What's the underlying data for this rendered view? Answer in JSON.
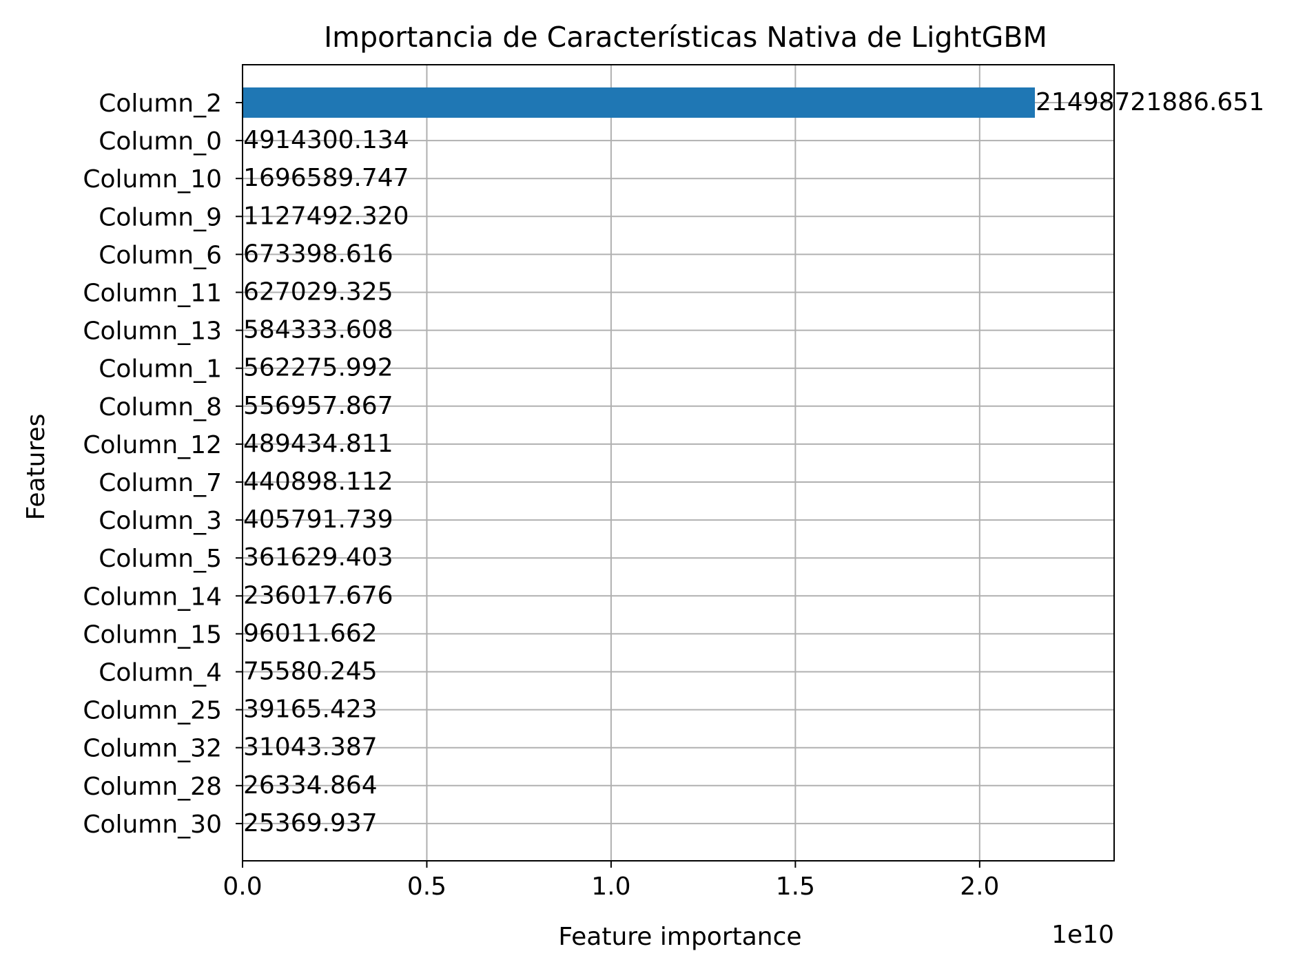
{
  "chart_data": {
    "type": "bar",
    "orientation": "horizontal",
    "title": "Importancia de Características Nativa de LightGBM",
    "xlabel": "Feature importance",
    "ylabel": "Features",
    "x_offset_label": "1e10",
    "xlim": [
      0,
      23648594075.3
    ],
    "x_ticks": [
      0,
      5000000000,
      10000000000,
      15000000000,
      20000000000
    ],
    "x_tick_labels": [
      "0.0",
      "0.5",
      "1.0",
      "1.5",
      "2.0"
    ],
    "grid": true,
    "bar_color": "#1f77b4",
    "categories": [
      "Column_2",
      "Column_0",
      "Column_10",
      "Column_9",
      "Column_6",
      "Column_11",
      "Column_13",
      "Column_1",
      "Column_8",
      "Column_12",
      "Column_7",
      "Column_3",
      "Column_5",
      "Column_14",
      "Column_15",
      "Column_4",
      "Column_25",
      "Column_32",
      "Column_28",
      "Column_30"
    ],
    "values": [
      21498721886.651,
      4914300.134,
      1696589.747,
      1127492.32,
      673398.616,
      627029.325,
      584333.608,
      562275.992,
      556957.867,
      489434.811,
      440898.112,
      405791.739,
      361629.403,
      236017.676,
      96011.662,
      75580.245,
      39165.423,
      31043.387,
      26334.864,
      25369.937
    ],
    "value_labels": [
      "21498721886.651",
      "4914300.134",
      "1696589.747",
      "1127492.320",
      "673398.616",
      "627029.325",
      "584333.608",
      "562275.992",
      "556957.867",
      "489434.811",
      "440898.112",
      "405791.739",
      "361629.403",
      "236017.676",
      "96011.662",
      "75580.245",
      "39165.423",
      "31043.387",
      "26334.864",
      "25369.937"
    ]
  }
}
